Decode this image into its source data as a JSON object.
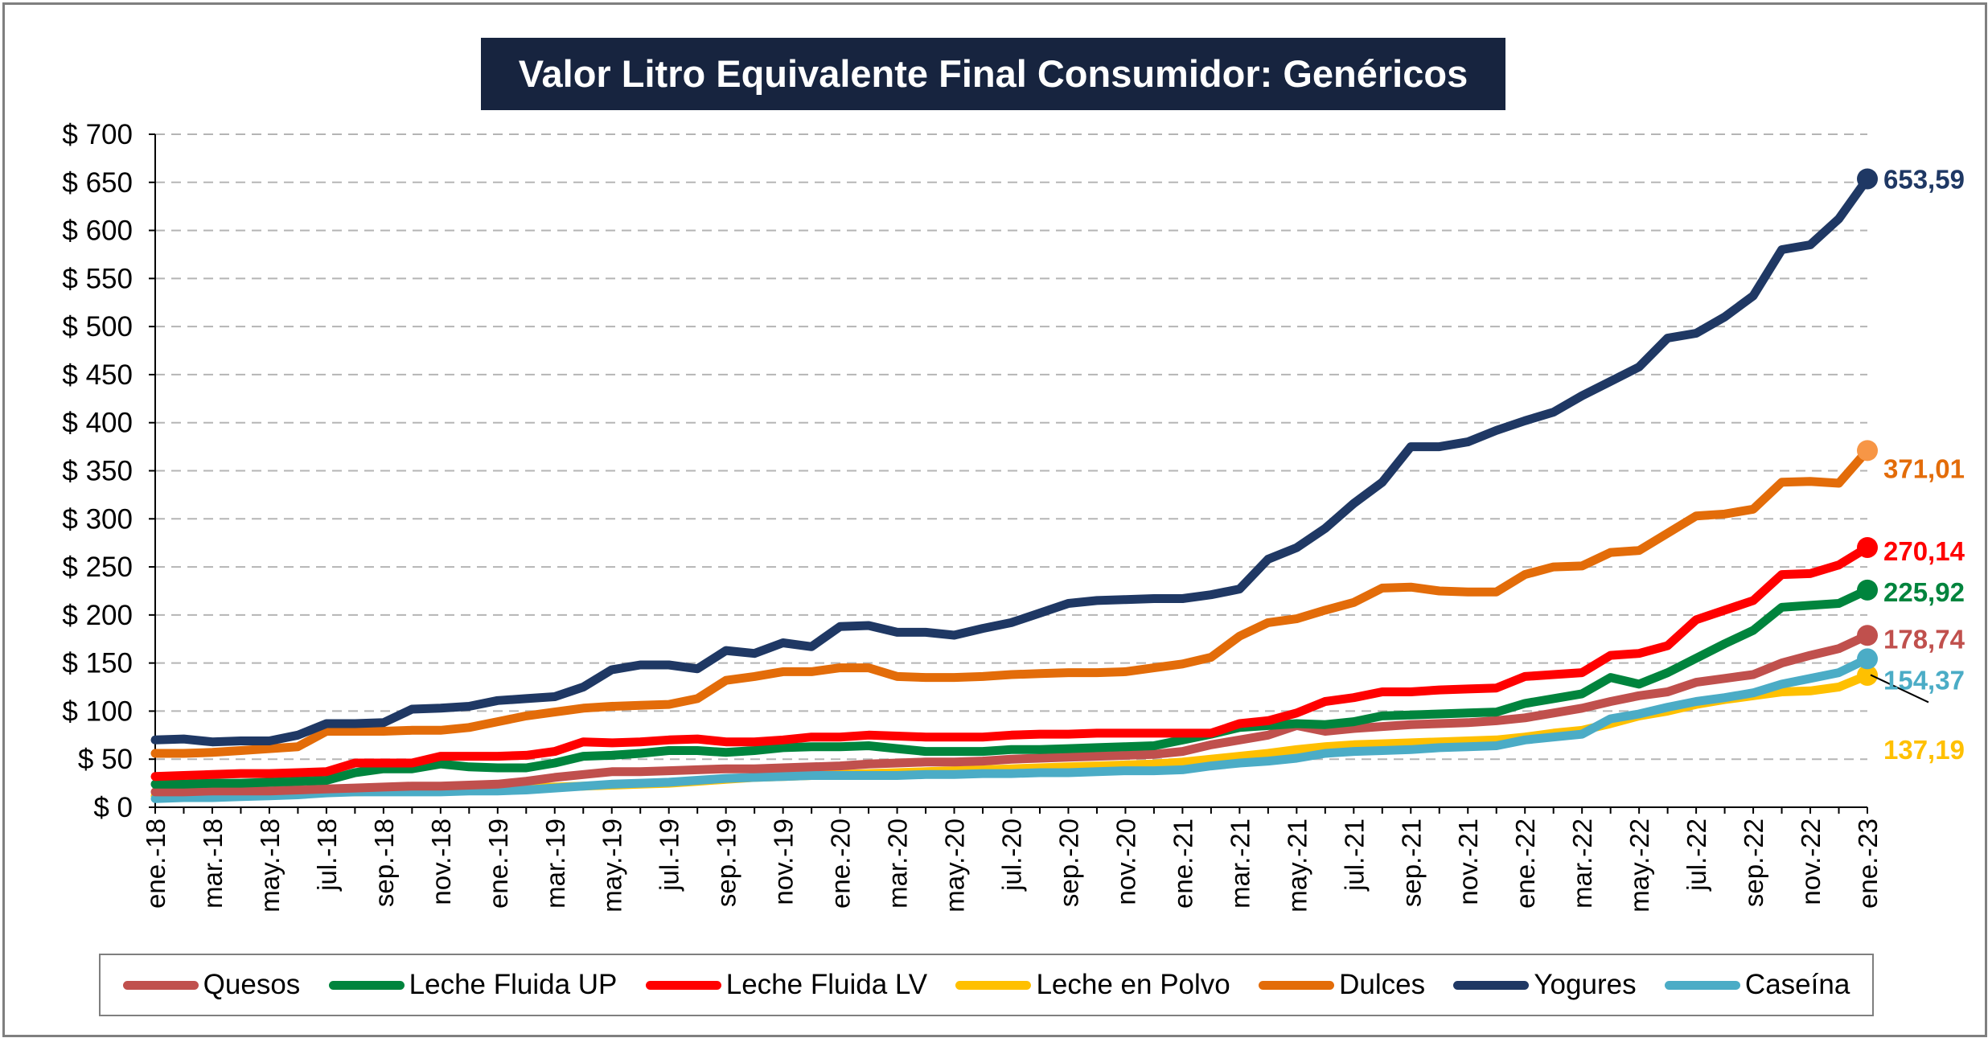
{
  "chart_data": {
    "type": "line",
    "title": "Valor Litro Equivalente Final Consumidor: Genéricos",
    "xlabel": "",
    "ylabel": "",
    "ylim": [
      0,
      700
    ],
    "yticks": [
      "$ 0",
      "$ 50",
      "$ 100",
      "$ 150",
      "$ 200",
      "$ 250",
      "$ 300",
      "$ 350",
      "$ 400",
      "$ 450",
      "$ 500",
      "$ 550",
      "$ 600",
      "$ 650",
      "$ 700"
    ],
    "grid": true,
    "legend_position": "bottom",
    "x": [
      "ene.-18",
      "feb.-18",
      "mar.-18",
      "abr.-18",
      "may.-18",
      "jun.-18",
      "jul.-18",
      "ago.-18",
      "sep.-18",
      "oct.-18",
      "nov.-18",
      "dic.-18",
      "ene.-19",
      "feb.-19",
      "mar.-19",
      "abr.-19",
      "may.-19",
      "jun.-19",
      "jul.-19",
      "ago.-19",
      "sep.-19",
      "oct.-19",
      "nov.-19",
      "dic.-19",
      "ene.-20",
      "feb.-20",
      "mar.-20",
      "abr.-20",
      "may.-20",
      "jun.-20",
      "jul.-20",
      "ago.-20",
      "sep.-20",
      "oct.-20",
      "nov.-20",
      "dic.-20",
      "ene.-21",
      "feb.-21",
      "mar.-21",
      "abr.-21",
      "may.-21",
      "jun.-21",
      "jul.-21",
      "ago.-21",
      "sep.-21",
      "oct.-21",
      "nov.-21",
      "dic.-21",
      "ene.-22",
      "feb.-22",
      "mar.-22",
      "abr.-22",
      "may.-22",
      "jun.-22",
      "jul.-22",
      "ago.-22",
      "sep.-22",
      "oct.-22",
      "nov.-22",
      "dic.-22",
      "ene.-23"
    ],
    "xtick_labels": [
      "ene.-18",
      "mar.-18",
      "may.-18",
      "jul.-18",
      "sep.-18",
      "nov.-18",
      "ene.-19",
      "mar.-19",
      "may.-19",
      "jul.-19",
      "sep.-19",
      "nov.-19",
      "ene.-20",
      "mar.-20",
      "may.-20",
      "jul.-20",
      "sep.-20",
      "nov.-20",
      "ene.-21",
      "mar.-21",
      "may.-21",
      "jul.-21",
      "sep.-21",
      "nov.-21",
      "ene.-22",
      "mar.-22",
      "may.-22",
      "jul.-22",
      "sep.-22",
      "nov.-22",
      "ene.-23"
    ],
    "series": [
      {
        "name": "Quesos",
        "color": "#c0504d",
        "end_label": "178,74",
        "label_color": "#c0504d",
        "values": [
          16,
          16,
          17,
          17,
          17,
          18,
          19,
          20,
          21,
          22,
          22,
          23,
          24,
          27,
          31,
          34,
          37,
          37,
          38,
          39,
          40,
          40,
          41,
          42,
          43,
          45,
          46,
          47,
          47,
          48,
          50,
          51,
          52,
          53,
          54,
          55,
          58,
          65,
          70,
          75,
          85,
          79,
          82,
          84,
          86,
          87,
          88,
          90,
          93,
          98,
          103,
          110,
          116,
          120,
          130,
          134,
          138,
          150,
          158,
          165,
          178.74
        ]
      },
      {
        "name": "Leche Fluida UP",
        "color": "#00843d",
        "end_label": "225,92",
        "label_color": "#00843d",
        "values": [
          24,
          24,
          25,
          25,
          26,
          27,
          28,
          36,
          40,
          40,
          45,
          42,
          41,
          41,
          46,
          53,
          54,
          56,
          59,
          59,
          57,
          59,
          62,
          63,
          63,
          64,
          61,
          58,
          58,
          58,
          60,
          60,
          61,
          62,
          63,
          64,
          70,
          76,
          83,
          85,
          87,
          86,
          89,
          95,
          96,
          97,
          98,
          99,
          108,
          113,
          118,
          135,
          128,
          140,
          155,
          170,
          184,
          208,
          210,
          212,
          225.92
        ]
      },
      {
        "name": "Leche Fluida LV",
        "color": "#ff0000",
        "end_label": "270,14",
        "label_color": "#ff0000",
        "values": [
          32,
          33,
          34,
          35,
          35,
          36,
          37,
          46,
          46,
          46,
          53,
          53,
          53,
          54,
          58,
          68,
          67,
          68,
          70,
          71,
          68,
          68,
          70,
          73,
          73,
          75,
          74,
          73,
          73,
          73,
          75,
          76,
          76,
          77,
          77,
          77,
          77,
          77,
          87,
          90,
          98,
          110,
          114,
          120,
          120,
          122,
          123,
          124,
          136,
          138,
          140,
          158,
          160,
          168,
          195,
          205,
          215,
          242,
          243,
          252,
          270.14
        ]
      },
      {
        "name": "Leche en Polvo",
        "color": "#ffc000",
        "end_label": "137,19",
        "label_color": "#ffc000",
        "values": [
          12,
          13,
          13,
          14,
          14,
          15,
          16,
          16,
          17,
          18,
          18,
          19,
          19,
          20,
          21,
          22,
          23,
          24,
          25,
          27,
          29,
          31,
          32,
          33,
          34,
          35,
          36,
          37,
          38,
          39,
          40,
          41,
          42,
          43,
          44,
          45,
          47,
          50,
          53,
          56,
          60,
          63,
          65,
          66,
          67,
          68,
          69,
          70,
          73,
          77,
          80,
          87,
          95,
          100,
          107,
          112,
          116,
          120,
          121,
          125,
          137.19
        ]
      },
      {
        "name": "Dulces",
        "color": "#e36c09",
        "end_label": "371,01",
        "label_color": "#e36c09",
        "values": [
          56,
          56,
          57,
          59,
          61,
          63,
          79,
          79,
          79,
          80,
          80,
          83,
          89,
          95,
          99,
          103,
          105,
          106,
          107,
          113,
          132,
          136,
          141,
          141,
          145,
          145,
          136,
          135,
          135,
          136,
          138,
          139,
          140,
          140,
          141,
          145,
          149,
          156,
          178,
          192,
          196,
          205,
          213,
          228,
          229,
          225,
          224,
          224,
          242,
          250,
          251,
          265,
          267,
          285,
          303,
          305,
          310,
          338,
          339,
          337,
          371.01
        ]
      },
      {
        "name": "Yogures",
        "color": "#1f3864",
        "end_label": "653,59",
        "label_color": "#1f3864",
        "values": [
          70,
          71,
          68,
          69,
          69,
          75,
          87,
          87,
          88,
          102,
          103,
          105,
          111,
          113,
          115,
          125,
          143,
          148,
          148,
          144,
          163,
          160,
          171,
          167,
          188,
          189,
          182,
          182,
          179,
          186,
          192,
          202,
          212,
          215,
          216,
          217,
          217,
          221,
          227,
          258,
          270,
          290,
          316,
          338,
          375,
          375,
          380,
          392,
          402,
          411,
          428,
          443,
          458,
          488,
          493,
          510,
          532,
          580,
          585,
          612,
          653.59
        ]
      },
      {
        "name": "Caseína",
        "color": "#4bacc6",
        "end_label": "154,37",
        "label_color": "#4bacc6",
        "values": [
          9,
          10,
          10,
          11,
          12,
          13,
          15,
          16,
          16,
          16,
          16,
          17,
          17,
          18,
          20,
          22,
          24,
          25,
          26,
          28,
          30,
          31,
          32,
          33,
          33,
          33,
          33,
          34,
          34,
          35,
          35,
          36,
          36,
          37,
          38,
          38,
          39,
          43,
          46,
          48,
          51,
          56,
          58,
          59,
          60,
          62,
          63,
          64,
          70,
          73,
          76,
          92,
          97,
          104,
          110,
          114,
          119,
          128,
          134,
          140,
          154.37
        ]
      }
    ]
  }
}
